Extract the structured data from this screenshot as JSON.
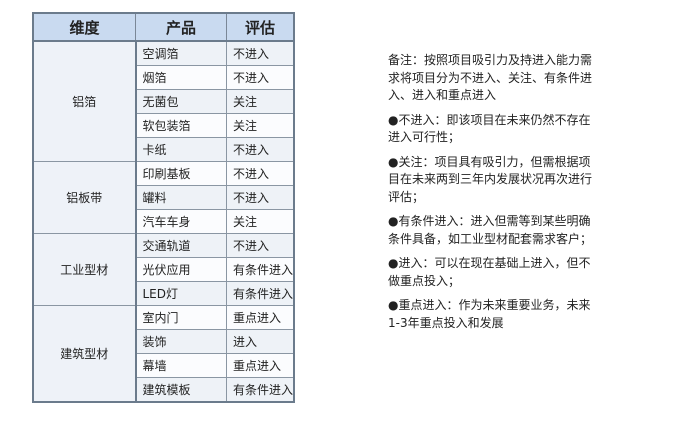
{
  "table": {
    "headers": [
      "维度",
      "产品",
      "评估"
    ],
    "groups": [
      {
        "dimension": "铝箔",
        "rows": [
          [
            "空调箔",
            "不进入"
          ],
          [
            "烟箔",
            "不进入"
          ],
          [
            "无菌包",
            "关注"
          ],
          [
            "软包装箔",
            "关注"
          ],
          [
            "卡纸",
            "不进入"
          ]
        ]
      },
      {
        "dimension": "铝板带",
        "rows": [
          [
            "印刷基板",
            "不进入"
          ],
          [
            "罐料",
            "不进入"
          ],
          [
            "汽车车身",
            "关注"
          ]
        ]
      },
      {
        "dimension": "工业型材",
        "rows": [
          [
            "交通轨道",
            "不进入"
          ],
          [
            "光伏应用",
            "有条件进入"
          ],
          [
            "LED灯",
            "有条件进入"
          ]
        ]
      },
      {
        "dimension": "建筑型材",
        "rows": [
          [
            "室内门",
            "重点进入"
          ],
          [
            "装饰",
            "进入"
          ],
          [
            "幕墙",
            "重点进入"
          ],
          [
            "建筑模板",
            "有条件进入"
          ]
        ]
      }
    ]
  },
  "notes": [
    [
      "备注：按照项目吸引力及持进入能力需",
      "求将项目分为不进入、关注、有条件进",
      "入、进入和重点进入"
    ],
    [
      "●不进入：即该项目在未来仍然不存在",
      "进入可行性；"
    ],
    [
      "●关注：项目具有吸引力，但需根据项",
      "目在未来两到三年内发展状况再次进行",
      "评估；"
    ],
    [
      "●有条件进入：进入但需等到某些明确",
      "条件具备，如工业型材配套需求客户；"
    ],
    [
      "●进入：可以在现在基础上进入，但不",
      "做重点投入；"
    ],
    [
      "●重点进入：作为未来重要业务，未来",
      "1-3年重点投入和发展"
    ]
  ]
}
